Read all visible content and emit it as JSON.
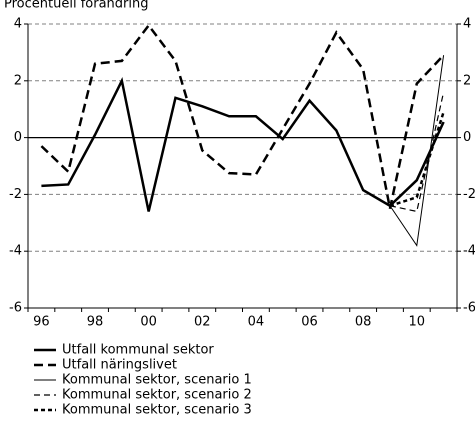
{
  "chart_data": {
    "type": "line",
    "title": "Procentuell förändring",
    "categories": [
      "96",
      null,
      "98",
      null,
      "00",
      null,
      "02",
      null,
      "04",
      null,
      "06",
      null,
      "08",
      null,
      "10",
      null
    ],
    "series": [
      {
        "name": "Utfall kommunal sektor",
        "color": "#000000",
        "style": "solid-thick",
        "values": [
          -1.7,
          -1.65,
          0.1,
          2.0,
          -2.6,
          1.4,
          1.1,
          0.75,
          0.75,
          -0.05,
          1.3,
          0.25,
          -1.85,
          -2.4,
          -1.5,
          0.55
        ]
      },
      {
        "name": "Utfall näringslivet",
        "color": "#000000",
        "style": "dashed-thick",
        "values": [
          -0.3,
          -1.2,
          2.6,
          2.7,
          3.95,
          2.7,
          -0.45,
          -1.25,
          -1.3,
          0.3,
          1.9,
          3.7,
          2.4,
          -2.5,
          1.9,
          2.9
        ]
      },
      {
        "name": "Kommunal sektor, scenario 1",
        "color": "#000000",
        "style": "solid-thin",
        "values": [
          null,
          null,
          null,
          null,
          null,
          null,
          null,
          null,
          null,
          null,
          null,
          null,
          null,
          -2.4,
          -3.8,
          2.9
        ]
      },
      {
        "name": "Kommunal sektor, scenario 2",
        "color": "#000000",
        "style": "dashed-thin",
        "values": [
          null,
          null,
          null,
          null,
          null,
          null,
          null,
          null,
          null,
          null,
          null,
          null,
          null,
          -2.4,
          -2.6,
          1.6
        ]
      },
      {
        "name": "Kommunal sektor, scenario 3",
        "color": "#000000",
        "style": "dotted-thick",
        "values": [
          null,
          null,
          null,
          null,
          null,
          null,
          null,
          null,
          null,
          null,
          null,
          null,
          null,
          -2.4,
          -2.1,
          0.9
        ]
      }
    ],
    "ylim": [
      -6,
      4
    ],
    "yticks": [
      -6,
      -4,
      -2,
      0,
      2,
      4
    ],
    "grid": true
  }
}
